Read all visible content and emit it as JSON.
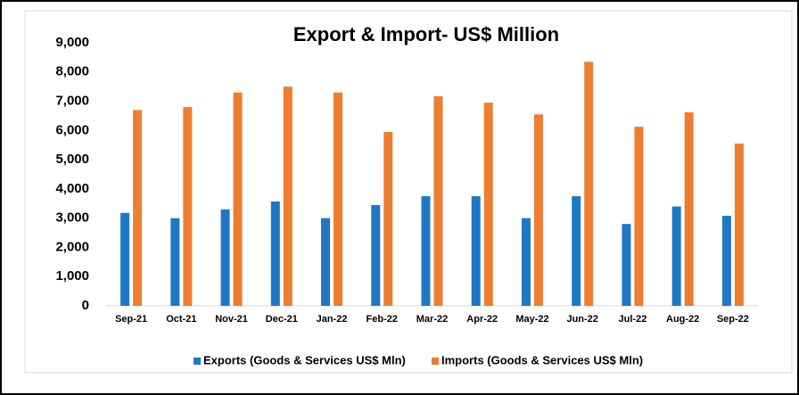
{
  "chart_data": {
    "type": "bar",
    "title": "Export & Import- US$ Million",
    "categories": [
      "Sep-21",
      "Oct-21",
      "Nov-21",
      "Dec-21",
      "Jan-22",
      "Feb-22",
      "Mar-22",
      "Apr-22",
      "May-22",
      "Jun-22",
      "Jul-22",
      "Aug-22",
      "Sep-22"
    ],
    "series": [
      {
        "name": "Exports (Goods & Services US$ Mln)",
        "color": "#1f77c4",
        "values": [
          3180,
          3000,
          3300,
          3570,
          3000,
          3450,
          3750,
          3750,
          3000,
          3750,
          2800,
          3400,
          3080
        ]
      },
      {
        "name": "Imports (Goods & Services US$ Mln)",
        "color": "#ed7d31",
        "values": [
          6700,
          6800,
          7300,
          7500,
          7300,
          5950,
          7170,
          6950,
          6550,
          8350,
          6130,
          6620,
          5550
        ]
      }
    ],
    "ylim": [
      0,
      9000
    ],
    "yticks": [
      0,
      {
        "value": 1000,
        "label": "1,000"
      },
      {
        "value": 2000,
        "label": "2,000"
      },
      {
        "value": 3000,
        "label": "3,000"
      },
      {
        "value": 4000,
        "label": "4,000"
      },
      {
        "value": 5000,
        "label": "5,000"
      },
      {
        "value": 6000,
        "label": "6,000"
      },
      {
        "value": 7000,
        "label": "7,000"
      },
      {
        "value": 8000,
        "label": "8,000"
      },
      {
        "value": 9000,
        "label": "9,000"
      }
    ],
    "grid": false,
    "legend": "bottom"
  }
}
